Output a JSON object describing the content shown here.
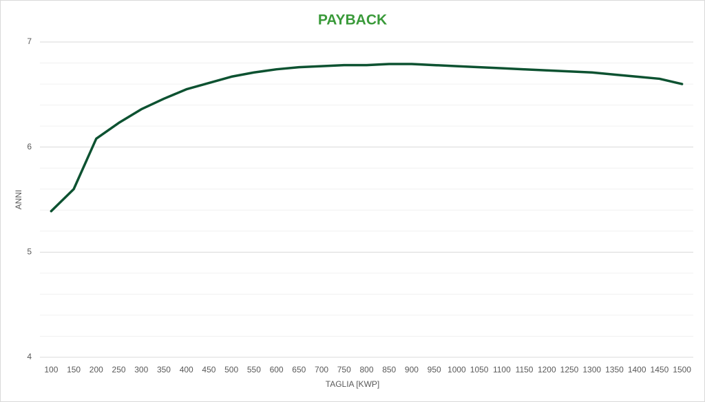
{
  "chart_data": {
    "type": "line",
    "title": "PAYBACK",
    "x_label": "TAGLIA [KWP]",
    "y_label": "ANNI",
    "categories": [
      100,
      150,
      200,
      250,
      300,
      350,
      400,
      450,
      500,
      550,
      600,
      650,
      700,
      750,
      800,
      850,
      900,
      950,
      1000,
      1050,
      1100,
      1150,
      1200,
      1250,
      1300,
      1350,
      1400,
      1450,
      1500
    ],
    "series": [
      {
        "name": "Payback",
        "color": "#0d5231",
        "values": [
          5.39,
          5.6,
          6.08,
          6.23,
          6.36,
          6.46,
          6.55,
          6.61,
          6.67,
          6.71,
          6.74,
          6.76,
          6.77,
          6.78,
          6.78,
          6.79,
          6.79,
          6.78,
          6.77,
          6.76,
          6.75,
          6.74,
          6.73,
          6.72,
          6.71,
          6.69,
          6.67,
          6.65,
          6.6
        ]
      }
    ],
    "ylim": [
      4,
      7
    ],
    "yticks": [
      4,
      5,
      6,
      7
    ],
    "minor_yticks": [
      4.2,
      4.4,
      4.6,
      4.8,
      5.2,
      5.4,
      5.6,
      5.8,
      6.2,
      6.4,
      6.6,
      6.8
    ],
    "grid": true,
    "title_color": "#3a9a3a"
  }
}
